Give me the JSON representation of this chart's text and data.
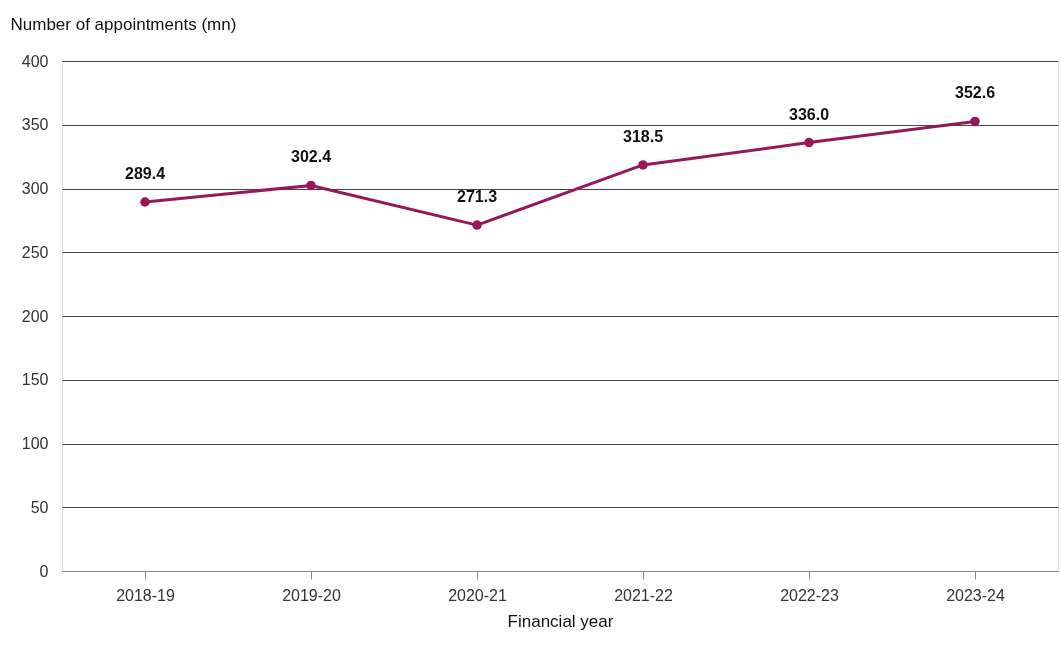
{
  "chart_data": {
    "type": "line",
    "xlabel": "Financial year",
    "ylabel": "Number of appointments (mn)",
    "categories": [
      "2018-19",
      "2019-20",
      "2020-21",
      "2021-22",
      "2022-23",
      "2023-24"
    ],
    "series": [
      {
        "color": "#98175a",
        "values": [
          289.4,
          302.4,
          271.3,
          318.5,
          336.0,
          352.6
        ],
        "value_labels": [
          "289.4",
          "302.4",
          "271.3",
          "318.5",
          "336.0",
          "352.6"
        ]
      }
    ],
    "ylim": [
      0,
      400
    ],
    "yticks": [
      0,
      50,
      100,
      150,
      200,
      250,
      300,
      350,
      400
    ],
    "grid": "y",
    "marker": "circle",
    "line_style": "solid"
  }
}
